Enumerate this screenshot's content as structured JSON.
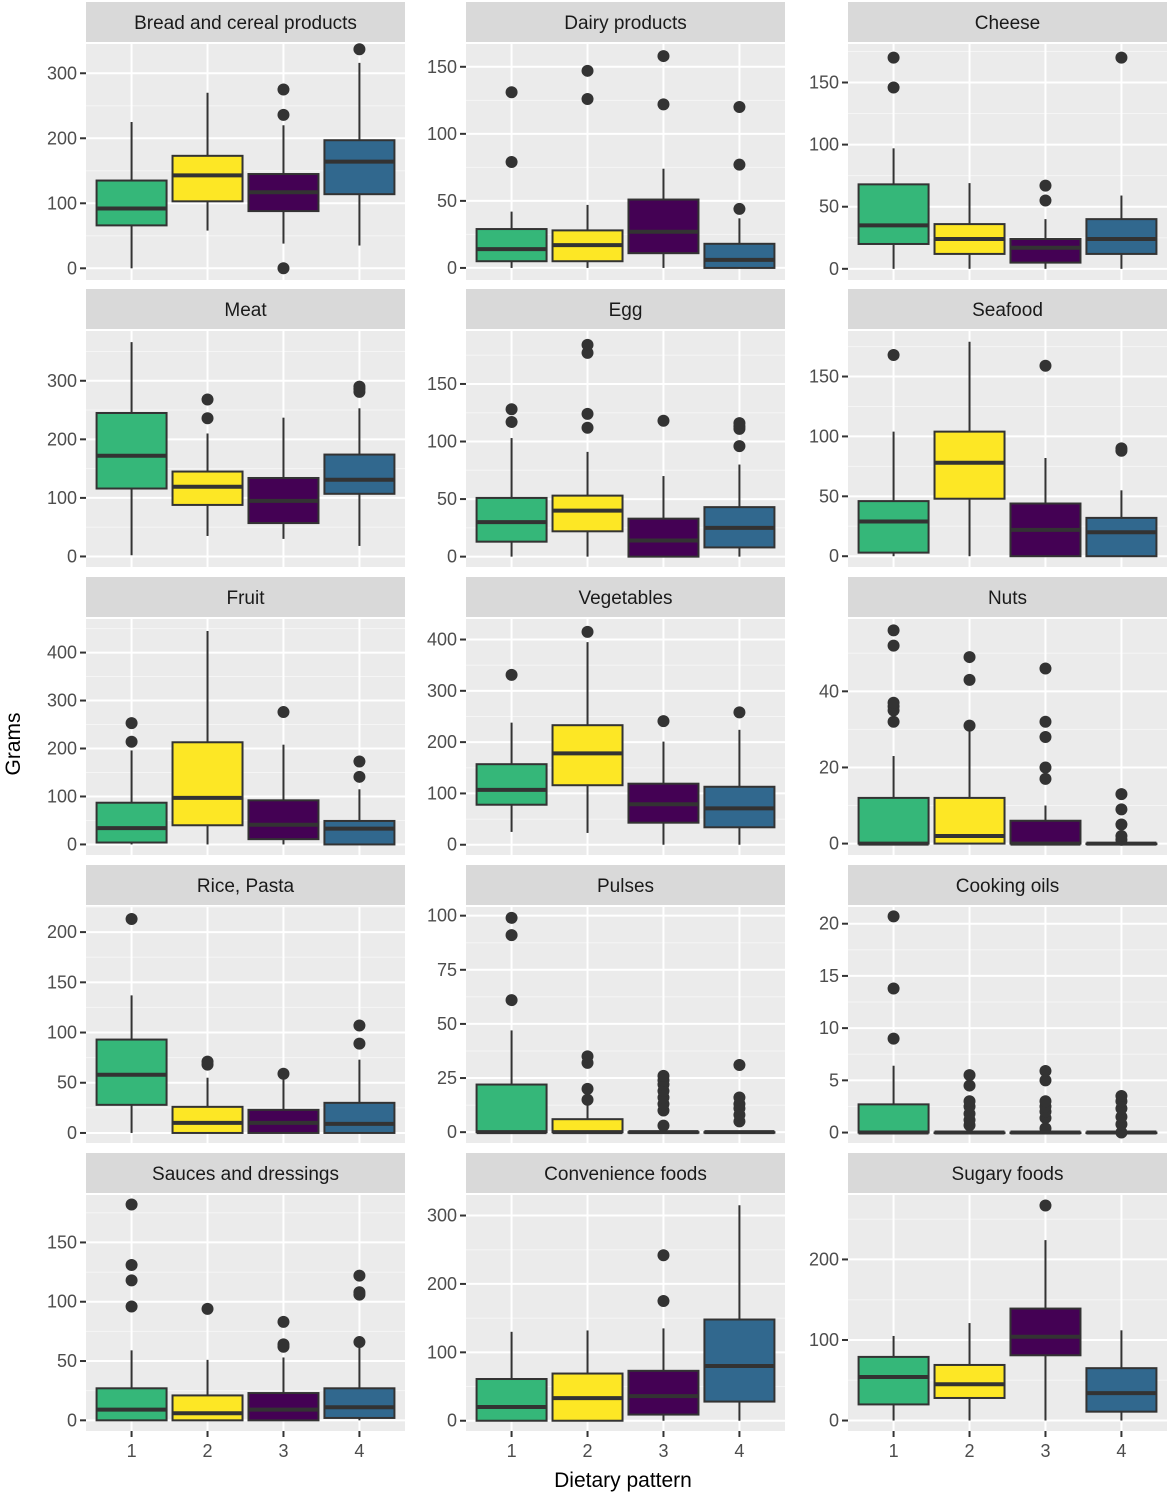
{
  "chart_data": {
    "type": "boxplot",
    "layout": "faceted 5x3",
    "xlabel": "Dietary pattern",
    "ylabel": "Grams",
    "categories": [
      "1",
      "2",
      "3",
      "4"
    ],
    "group_colors": {
      "1": "#35b779",
      "2": "#fde725",
      "3": "#440154",
      "4": "#31688e"
    },
    "grid": true,
    "legend": "none",
    "panels": [
      {
        "title": "Bread and cereal products",
        "ylim": [
          -18,
          345
        ],
        "yticks": [
          0,
          100,
          200,
          300
        ],
        "boxes": [
          {
            "group": "1",
            "lower_whisker": 0,
            "q1": 66,
            "median": 92,
            "q3": 135,
            "upper_whisker": 225,
            "outliers": []
          },
          {
            "group": "2",
            "lower_whisker": 58,
            "q1": 103,
            "median": 143,
            "q3": 173,
            "upper_whisker": 270,
            "outliers": []
          },
          {
            "group": "3",
            "lower_whisker": 38,
            "q1": 88,
            "median": 117,
            "q3": 145,
            "upper_whisker": 220,
            "outliers": [
              0,
              236,
              275
            ]
          },
          {
            "group": "4",
            "lower_whisker": 35,
            "q1": 114,
            "median": 164,
            "q3": 197,
            "upper_whisker": 316,
            "outliers": [
              337
            ]
          }
        ]
      },
      {
        "title": "Dairy products",
        "ylim": [
          -9,
          167
        ],
        "yticks": [
          0,
          50,
          100,
          150
        ],
        "boxes": [
          {
            "group": "1",
            "lower_whisker": 0,
            "q1": 5,
            "median": 14,
            "q3": 29,
            "upper_whisker": 42,
            "outliers": [
              79,
              131
            ]
          },
          {
            "group": "2",
            "lower_whisker": 0,
            "q1": 5,
            "median": 17,
            "q3": 28,
            "upper_whisker": 47,
            "outliers": [
              126,
              147
            ]
          },
          {
            "group": "3",
            "lower_whisker": 0,
            "q1": 11,
            "median": 27,
            "q3": 51,
            "upper_whisker": 74,
            "outliers": [
              122,
              158
            ]
          },
          {
            "group": "4",
            "lower_whisker": 0,
            "q1": 0,
            "median": 6,
            "q3": 18,
            "upper_whisker": 37,
            "outliers": [
              44,
              77,
              120
            ]
          }
        ]
      },
      {
        "title": "Cheese",
        "ylim": [
          -9,
          181
        ],
        "yticks": [
          0,
          50,
          100,
          150
        ],
        "boxes": [
          {
            "group": "1",
            "lower_whisker": 0,
            "q1": 20,
            "median": 35,
            "q3": 68,
            "upper_whisker": 97,
            "outliers": [
              146,
              170
            ]
          },
          {
            "group": "2",
            "lower_whisker": 0,
            "q1": 12,
            "median": 24,
            "q3": 36,
            "upper_whisker": 69,
            "outliers": []
          },
          {
            "group": "3",
            "lower_whisker": 0,
            "q1": 5,
            "median": 17,
            "q3": 24,
            "upper_whisker": 40,
            "outliers": [
              55,
              67
            ]
          },
          {
            "group": "4",
            "lower_whisker": 0,
            "q1": 12,
            "median": 24,
            "q3": 40,
            "upper_whisker": 59,
            "outliers": [
              170
            ]
          }
        ]
      },
      {
        "title": "Meat",
        "ylim": [
          -18,
          385
        ],
        "yticks": [
          0,
          100,
          200,
          300
        ],
        "boxes": [
          {
            "group": "1",
            "lower_whisker": 2,
            "q1": 116,
            "median": 172,
            "q3": 245,
            "upper_whisker": 366,
            "outliers": []
          },
          {
            "group": "2",
            "lower_whisker": 35,
            "q1": 88,
            "median": 119,
            "q3": 145,
            "upper_whisker": 210,
            "outliers": [
              236,
              268
            ]
          },
          {
            "group": "3",
            "lower_whisker": 30,
            "q1": 57,
            "median": 95,
            "q3": 134,
            "upper_whisker": 237,
            "outliers": []
          },
          {
            "group": "4",
            "lower_whisker": 18,
            "q1": 107,
            "median": 131,
            "q3": 174,
            "upper_whisker": 253,
            "outliers": [
              281,
              286,
              290
            ]
          }
        ]
      },
      {
        "title": "Egg",
        "ylim": [
          -9,
          196
        ],
        "yticks": [
          0,
          50,
          100,
          150
        ],
        "boxes": [
          {
            "group": "1",
            "lower_whisker": 0,
            "q1": 13,
            "median": 30,
            "q3": 51,
            "upper_whisker": 103,
            "outliers": [
              117,
              128
            ]
          },
          {
            "group": "2",
            "lower_whisker": 0,
            "q1": 22,
            "median": 40,
            "q3": 53,
            "upper_whisker": 91,
            "outliers": [
              112,
              124,
              177,
              184
            ]
          },
          {
            "group": "3",
            "lower_whisker": 0,
            "q1": 0,
            "median": 14,
            "q3": 33,
            "upper_whisker": 70,
            "outliers": [
              118
            ]
          },
          {
            "group": "4",
            "lower_whisker": 0,
            "q1": 8,
            "median": 25,
            "q3": 43,
            "upper_whisker": 80,
            "outliers": [
              96,
              111,
              113,
              116
            ]
          }
        ]
      },
      {
        "title": "Seafood",
        "ylim": [
          -9,
          188
        ],
        "yticks": [
          0,
          50,
          100,
          150
        ],
        "boxes": [
          {
            "group": "1",
            "lower_whisker": 0,
            "q1": 3,
            "median": 29,
            "q3": 46,
            "upper_whisker": 104,
            "outliers": [
              168
            ]
          },
          {
            "group": "2",
            "lower_whisker": 0,
            "q1": 48,
            "median": 78,
            "q3": 104,
            "upper_whisker": 179,
            "outliers": []
          },
          {
            "group": "3",
            "lower_whisker": 0,
            "q1": 0,
            "median": 22,
            "q3": 44,
            "upper_whisker": 82,
            "outliers": [
              159
            ]
          },
          {
            "group": "4",
            "lower_whisker": 0,
            "q1": 0,
            "median": 20,
            "q3": 32,
            "upper_whisker": 55,
            "outliers": [
              88,
              90
            ]
          }
        ]
      },
      {
        "title": "Fruit",
        "ylim": [
          -22,
          470
        ],
        "yticks": [
          0,
          100,
          200,
          300,
          400
        ],
        "boxes": [
          {
            "group": "1",
            "lower_whisker": 0,
            "q1": 4,
            "median": 34,
            "q3": 87,
            "upper_whisker": 196,
            "outliers": [
              214,
              253
            ]
          },
          {
            "group": "2",
            "lower_whisker": 0,
            "q1": 40,
            "median": 97,
            "q3": 213,
            "upper_whisker": 445,
            "outliers": []
          },
          {
            "group": "3",
            "lower_whisker": 0,
            "q1": 11,
            "median": 41,
            "q3": 92,
            "upper_whisker": 208,
            "outliers": [
              276
            ]
          },
          {
            "group": "4",
            "lower_whisker": 0,
            "q1": 0,
            "median": 33,
            "q3": 49,
            "upper_whisker": 115,
            "outliers": [
              141,
              173
            ]
          }
        ]
      },
      {
        "title": "Vegetables",
        "ylim": [
          -20,
          440
        ],
        "yticks": [
          0,
          100,
          200,
          300,
          400
        ],
        "boxes": [
          {
            "group": "1",
            "lower_whisker": 25,
            "q1": 78,
            "median": 107,
            "q3": 157,
            "upper_whisker": 238,
            "outliers": [
              331
            ]
          },
          {
            "group": "2",
            "lower_whisker": 23,
            "q1": 116,
            "median": 178,
            "q3": 233,
            "upper_whisker": 395,
            "outliers": [
              415
            ]
          },
          {
            "group": "3",
            "lower_whisker": 0,
            "q1": 43,
            "median": 79,
            "q3": 119,
            "upper_whisker": 201,
            "outliers": [
              241
            ]
          },
          {
            "group": "4",
            "lower_whisker": 0,
            "q1": 34,
            "median": 71,
            "q3": 113,
            "upper_whisker": 224,
            "outliers": [
              258
            ]
          }
        ]
      },
      {
        "title": "Nuts",
        "ylim": [
          -3,
          59
        ],
        "yticks": [
          0,
          20,
          40
        ],
        "boxes": [
          {
            "group": "1",
            "lower_whisker": 0,
            "q1": 0,
            "median": 0,
            "q3": 12,
            "upper_whisker": 23,
            "outliers": [
              32,
              35,
              36,
              37,
              52,
              56
            ]
          },
          {
            "group": "2",
            "lower_whisker": 0,
            "q1": 0,
            "median": 2,
            "q3": 12,
            "upper_whisker": 31,
            "outliers": [
              31,
              43,
              49
            ]
          },
          {
            "group": "3",
            "lower_whisker": 0,
            "q1": 0,
            "median": 0,
            "q3": 6,
            "upper_whisker": 10,
            "outliers": [
              17,
              20,
              28,
              32,
              46
            ]
          },
          {
            "group": "4",
            "lower_whisker": 0,
            "q1": 0,
            "median": 0,
            "q3": 0,
            "upper_whisker": 0,
            "outliers": [
              1,
              2,
              5,
              9,
              13
            ]
          }
        ]
      },
      {
        "title": "Rice, Pasta",
        "ylim": [
          -10,
          225
        ],
        "yticks": [
          0,
          50,
          100,
          150,
          200
        ],
        "boxes": [
          {
            "group": "1",
            "lower_whisker": 0,
            "q1": 28,
            "median": 58,
            "q3": 93,
            "upper_whisker": 137,
            "outliers": [
              213
            ]
          },
          {
            "group": "2",
            "lower_whisker": 0,
            "q1": 0,
            "median": 10,
            "q3": 26,
            "upper_whisker": 55,
            "outliers": [
              68,
              71
            ]
          },
          {
            "group": "3",
            "lower_whisker": 0,
            "q1": 0,
            "median": 10,
            "q3": 23,
            "upper_whisker": 58,
            "outliers": [
              59
            ]
          },
          {
            "group": "4",
            "lower_whisker": 0,
            "q1": 0,
            "median": 9,
            "q3": 30,
            "upper_whisker": 73,
            "outliers": [
              89,
              107
            ]
          }
        ]
      },
      {
        "title": "Pulses",
        "ylim": [
          -5,
          104
        ],
        "yticks": [
          0,
          25,
          50,
          75,
          100
        ],
        "boxes": [
          {
            "group": "1",
            "lower_whisker": 0,
            "q1": 0,
            "median": 0,
            "q3": 22,
            "upper_whisker": 47,
            "outliers": [
              61,
              91,
              99
            ]
          },
          {
            "group": "2",
            "lower_whisker": 0,
            "q1": 0,
            "median": 0,
            "q3": 6,
            "upper_whisker": 13,
            "outliers": [
              15,
              20,
              32,
              35
            ]
          },
          {
            "group": "3",
            "lower_whisker": 0,
            "q1": 0,
            "median": 0,
            "q3": 0,
            "upper_whisker": 0,
            "outliers": [
              3,
              10,
              13,
              16,
              19,
              22,
              24,
              26
            ]
          },
          {
            "group": "4",
            "lower_whisker": 0,
            "q1": 0,
            "median": 0,
            "q3": 0,
            "upper_whisker": 0,
            "outliers": [
              5,
              8,
              11,
              13,
              16,
              31
            ]
          }
        ]
      },
      {
        "title": "Cooking oils",
        "ylim": [
          -1,
          21.6
        ],
        "yticks": [
          0,
          5,
          10,
          15,
          20
        ],
        "boxes": [
          {
            "group": "1",
            "lower_whisker": 0,
            "q1": 0,
            "median": 0,
            "q3": 2.7,
            "upper_whisker": 6.4,
            "outliers": [
              9,
              13.8,
              20.7
            ]
          },
          {
            "group": "2",
            "lower_whisker": 0,
            "q1": 0,
            "median": 0,
            "q3": 0,
            "upper_whisker": 0,
            "outliers": [
              0.7,
              1.2,
              1.8,
              2.5,
              3,
              4.5,
              5.5
            ]
          },
          {
            "group": "3",
            "lower_whisker": 0,
            "q1": 0,
            "median": 0,
            "q3": 0,
            "upper_whisker": 0,
            "outliers": [
              0.4,
              1.4,
              2,
              2.5,
              3,
              5,
              5.9
            ]
          },
          {
            "group": "4",
            "lower_whisker": 0,
            "q1": 0,
            "median": 0,
            "q3": 0,
            "upper_whisker": 0,
            "outliers": [
              0,
              0.8,
              1.5,
              2.3,
              3,
              3.5
            ]
          }
        ]
      },
      {
        "title": "Sauces and dressings",
        "ylim": [
          -9,
          190
        ],
        "yticks": [
          0,
          50,
          100,
          150
        ],
        "boxes": [
          {
            "group": "1",
            "lower_whisker": 0,
            "q1": 0,
            "median": 9,
            "q3": 27,
            "upper_whisker": 59,
            "outliers": [
              96,
              118,
              131,
              182
            ]
          },
          {
            "group": "2",
            "lower_whisker": 0,
            "q1": 0,
            "median": 6,
            "q3": 21,
            "upper_whisker": 51,
            "outliers": [
              94
            ]
          },
          {
            "group": "3",
            "lower_whisker": 0,
            "q1": 0,
            "median": 9,
            "q3": 23,
            "upper_whisker": 53,
            "outliers": [
              62,
              64,
              83
            ]
          },
          {
            "group": "4",
            "lower_whisker": 0,
            "q1": 2,
            "median": 11,
            "q3": 27,
            "upper_whisker": 62,
            "outliers": [
              66,
              106,
              108,
              122
            ]
          }
        ]
      },
      {
        "title": "Convenience foods",
        "ylim": [
          -15,
          330
        ],
        "yticks": [
          0,
          100,
          200,
          300
        ],
        "boxes": [
          {
            "group": "1",
            "lower_whisker": 0,
            "q1": 0,
            "median": 20,
            "q3": 61,
            "upper_whisker": 130,
            "outliers": []
          },
          {
            "group": "2",
            "lower_whisker": 0,
            "q1": 0,
            "median": 33,
            "q3": 69,
            "upper_whisker": 132,
            "outliers": []
          },
          {
            "group": "3",
            "lower_whisker": 0,
            "q1": 9,
            "median": 36,
            "q3": 73,
            "upper_whisker": 135,
            "outliers": [
              175,
              242
            ]
          },
          {
            "group": "4",
            "lower_whisker": 0,
            "q1": 28,
            "median": 80,
            "q3": 148,
            "upper_whisker": 315,
            "outliers": []
          }
        ]
      },
      {
        "title": "Sugary foods",
        "ylim": [
          -13,
          280
        ],
        "yticks": [
          0,
          100,
          200
        ],
        "boxes": [
          {
            "group": "1",
            "lower_whisker": 0,
            "q1": 20,
            "median": 54,
            "q3": 79,
            "upper_whisker": 105,
            "outliers": []
          },
          {
            "group": "2",
            "lower_whisker": 0,
            "q1": 28,
            "median": 45,
            "q3": 69,
            "upper_whisker": 121,
            "outliers": []
          },
          {
            "group": "3",
            "lower_whisker": 0,
            "q1": 81,
            "median": 104,
            "q3": 139,
            "upper_whisker": 224,
            "outliers": [
              267
            ]
          },
          {
            "group": "4",
            "lower_whisker": 0,
            "q1": 11,
            "median": 34,
            "q3": 65,
            "upper_whisker": 112,
            "outliers": []
          }
        ]
      }
    ]
  }
}
